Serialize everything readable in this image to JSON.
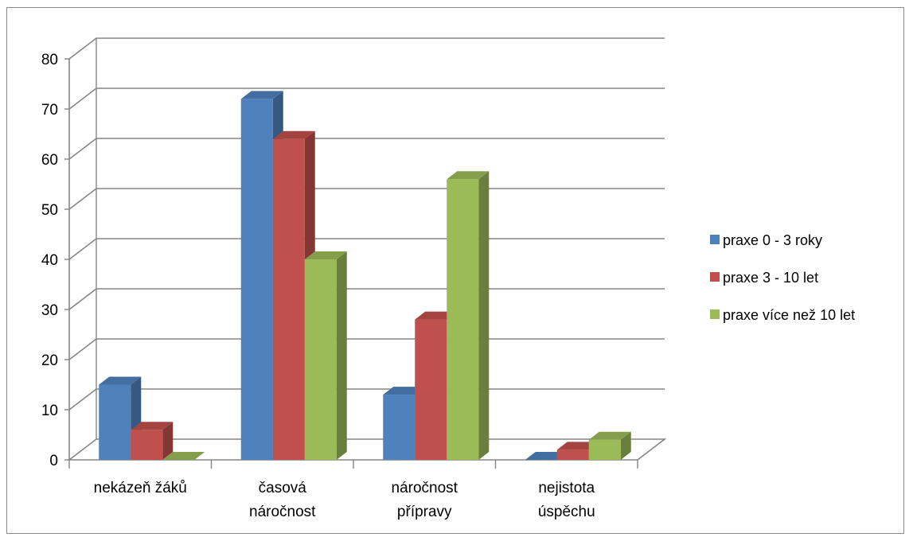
{
  "chart_data": {
    "type": "bar",
    "variant": "3d-clustered-column",
    "categories": [
      [
        "nekázeň žáků"
      ],
      [
        "časová",
        "náročnost"
      ],
      [
        "náročnost",
        "přípravy"
      ],
      [
        "nejistota",
        "úspěchu"
      ]
    ],
    "series": [
      {
        "name": "praxe 0 - 3 roky",
        "color": "#4f81bd",
        "values": [
          15,
          72,
          13,
          0
        ]
      },
      {
        "name": "praxe 3 - 10 let",
        "color": "#c0504d",
        "values": [
          6,
          64,
          28,
          2
        ]
      },
      {
        "name": "praxe více než 10 let",
        "color": "#9bbb59",
        "values": [
          0,
          40,
          56,
          4
        ]
      }
    ],
    "ylim": [
      0,
      80
    ],
    "yticks": [
      "0",
      "10",
      "20",
      "30",
      "40",
      "50",
      "60",
      "70",
      "80"
    ],
    "grid": true,
    "legend": "right"
  }
}
